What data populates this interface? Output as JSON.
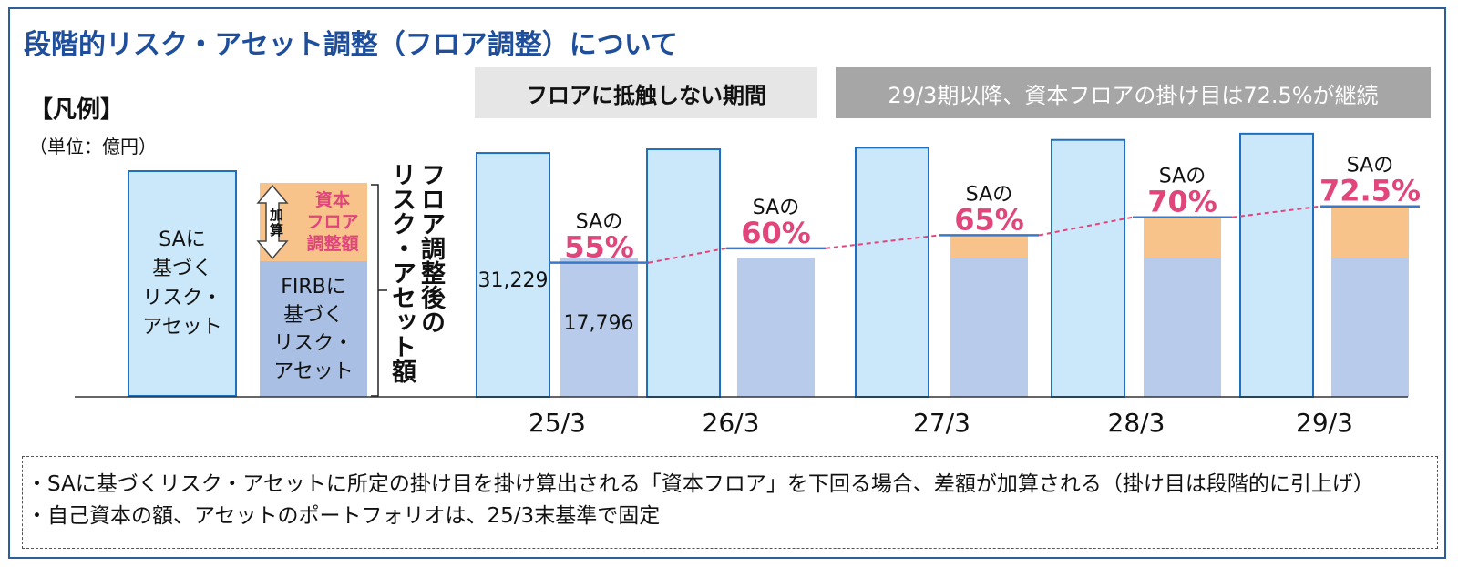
{
  "title": "段階的リスク・アセット調整（フロア調整）について",
  "banners": {
    "no_floor_period": "フロアに抵触しない期間",
    "after_29_3": "29/3期以降、資本フロアの掛け目は72.5%が継続"
  },
  "legend": {
    "title": "【凡例】",
    "unit": "（単位：億円）",
    "sa_line1": "SAに",
    "sa_line2": "基づく",
    "sa_line3": "リスク・",
    "sa_line4": "アセット",
    "firb_line1": "FIRBに",
    "firb_line2": "基づく",
    "firb_line3": "リスク・",
    "firb_line4": "アセット",
    "adj_line1": "資本",
    "adj_line2": "フロア",
    "adj_line3": "調整額",
    "kasan_line1": "加",
    "kasan_line2": "算",
    "vertical_col1": "フロア調整後の",
    "vertical_col2": "リスク・アセット額"
  },
  "chart_data": {
    "type": "bar",
    "title": "段階的リスク・アセット調整（フロア調整）",
    "unit": "億円",
    "categories": [
      "25/3",
      "26/3",
      "27/3",
      "28/3",
      "29/3"
    ],
    "series": [
      {
        "name": "SAに基づくリスク・アセット",
        "values": [
          31229,
          31700,
          31900,
          32900,
          33700
        ],
        "color": "#cbe8fa"
      },
      {
        "name": "FIRBに基づくリスク・アセット",
        "values": [
          17796,
          17796,
          17796,
          17796,
          17796
        ],
        "color": "#b9cbea"
      },
      {
        "name": "資本フロア調整額",
        "values": [
          0,
          0,
          2900,
          5200,
          6600
        ],
        "color": "#f8c38a"
      }
    ],
    "floor_pct": [
      "55%",
      "60%",
      "65%",
      "70%",
      "72.5%"
    ],
    "floor_prefix": "SAの",
    "data_labels": {
      "sa_25_3": "31,229",
      "firb_25_3": "17,796"
    },
    "ylim": [
      0,
      34500
    ]
  },
  "notes": [
    "・SAに基づくリスク・アセットに所定の掛け目を掛け算出される「資本フロア」を下回る場合、差額が加算される（掛け目は段階的に引上げ）",
    "・自己資本の額、アセットのポートフォリオは、25/3末基準で固定"
  ],
  "colors": {
    "sa": "#cbe8fa",
    "sa_border": "#1f6fbf",
    "firb": "#b9cbea",
    "adjust": "#f8c38a",
    "pct_text": "#e0457b",
    "floor_line": "#3a78c8",
    "dash_line": "#e0457b",
    "title": "#1f4e9a"
  }
}
